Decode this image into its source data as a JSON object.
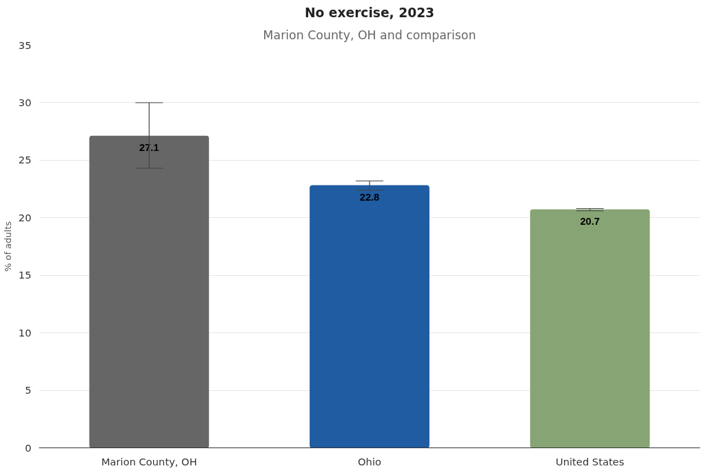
{
  "chart_data": {
    "type": "bar",
    "title": "No exercise, 2023",
    "subtitle": "Marion County, OH and comparison",
    "ylabel": "% of adults",
    "categories": [
      "Marion County, OH",
      "Ohio",
      "United States"
    ],
    "values": [
      27.1,
      22.8,
      20.7
    ],
    "colors": [
      "#666666",
      "#1f5ca1",
      "#87a574"
    ],
    "errors": [
      [
        24.3,
        30.0
      ],
      [
        22.4,
        23.2
      ],
      [
        20.6,
        20.8
      ]
    ],
    "ylim": [
      0,
      35
    ],
    "yticks": [
      0,
      5,
      10,
      15,
      20,
      25,
      30,
      35
    ],
    "grid": "y",
    "data_labels": true
  }
}
